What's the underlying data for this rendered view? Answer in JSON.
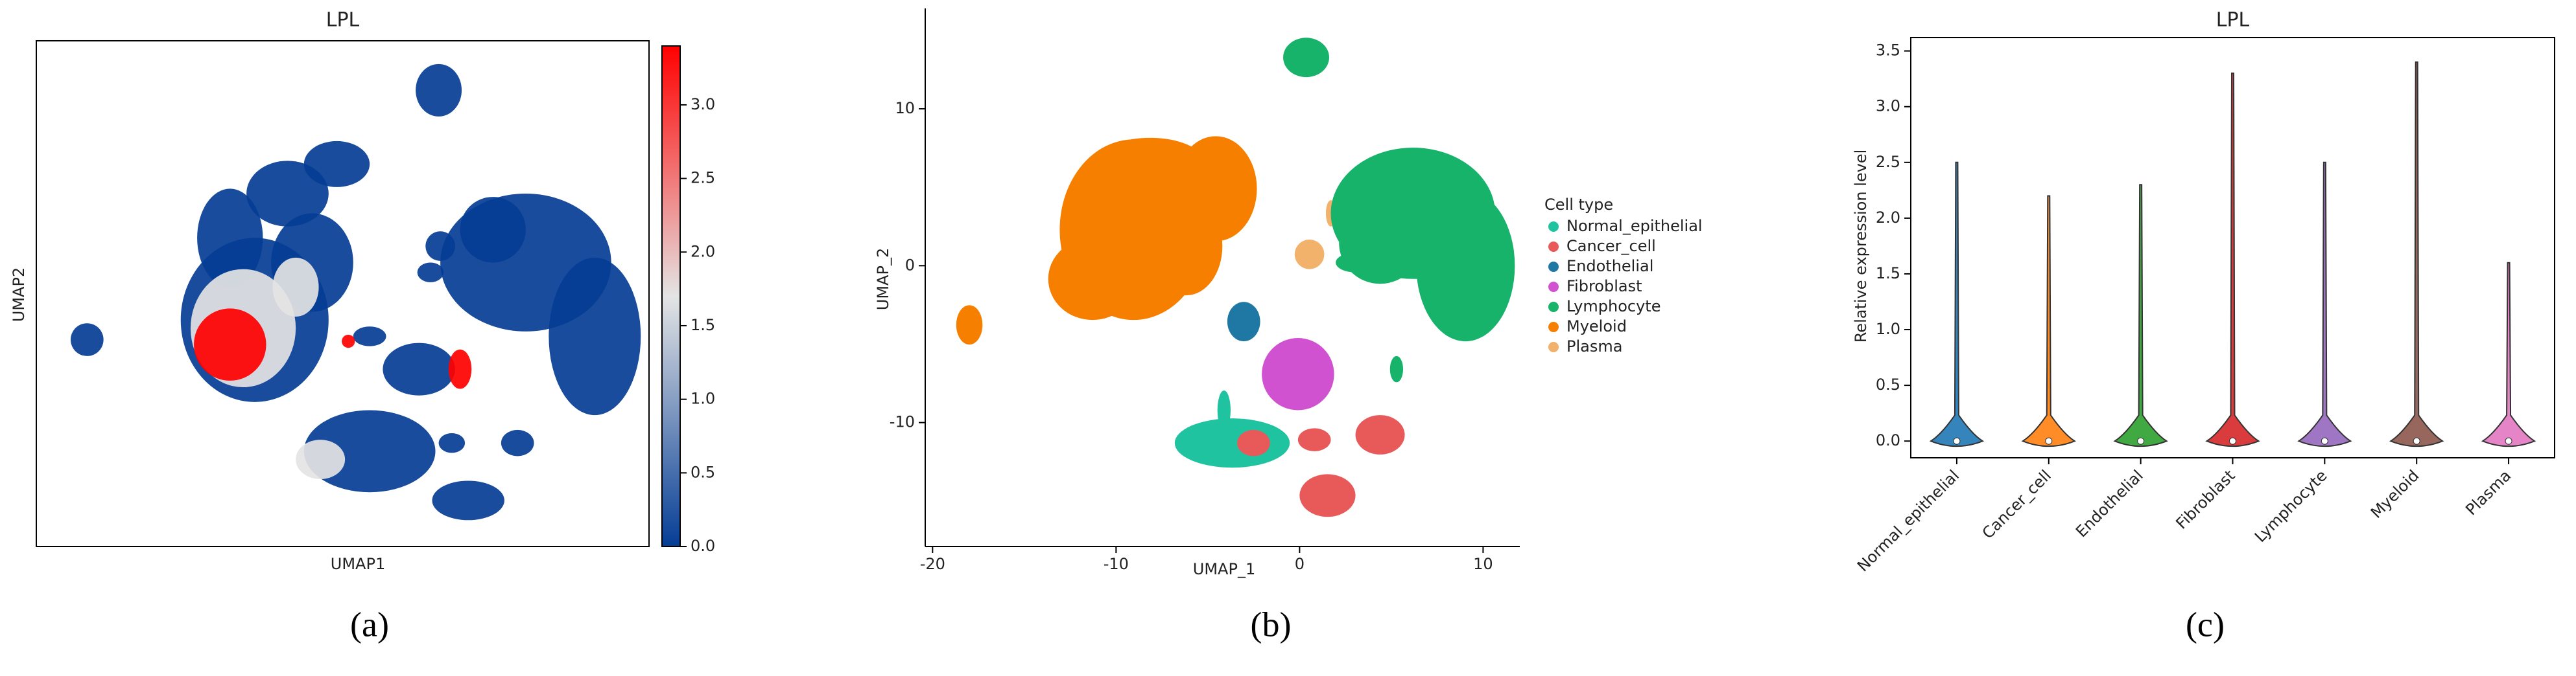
{
  "captions": [
    "(a)",
    "(b)",
    "(c)"
  ],
  "chart_data": [
    {
      "type": "umap-feature",
      "title": "LPL",
      "xlabel": "UMAP1",
      "ylabel": "UMAP2",
      "colorbar": {
        "lim": [
          0,
          3.4
        ],
        "ticks": [
          {
            "value": 0,
            "label": "0.0"
          },
          0.5,
          {
            "value": 1,
            "label": "1.0"
          },
          1.5,
          {
            "value": 2,
            "label": "2.0"
          },
          2.5,
          {
            "value": 3,
            "label": "3.0"
          }
        ],
        "colors": [
          "#053d95",
          "#e4e4e4",
          "#ff0000"
        ]
      }
    },
    {
      "type": "umap",
      "xlabel": "UMAP_1",
      "ylabel": "UMAP_2",
      "xlim": [
        -20.4,
        12
      ],
      "xticks": [
        -20,
        -10,
        0,
        10
      ],
      "ylim": [
        -17.9,
        16.4
      ],
      "yticks": [
        -10,
        0,
        10
      ],
      "legend_title": "Cell type",
      "series": [
        {
          "name": "Normal_epithelial",
          "color": "#1fc3a0"
        },
        {
          "name": "Cancer_cell",
          "color": "#e85a5a"
        },
        {
          "name": "Endothelial",
          "color": "#1f77a4"
        },
        {
          "name": "Fibroblast",
          "color": "#d152d1"
        },
        {
          "name": "Lymphocyte",
          "color": "#17b36b"
        },
        {
          "name": "Myeloid",
          "color": "#f77f00"
        },
        {
          "name": "Plasma",
          "color": "#f2b26b"
        }
      ]
    },
    {
      "type": "violin",
      "title": "LPL",
      "ylabel": "Relative expression level",
      "categories": [
        "Normal_epithelial",
        "Cancer_cell",
        "Endothelial",
        "Fibroblast",
        "Lymphocyte",
        "Myeloid",
        "Plasma"
      ],
      "max": [
        2.5,
        2.2,
        2.3,
        3.3,
        2.5,
        3.4,
        1.6
      ],
      "median": [
        0,
        0,
        0,
        0,
        0,
        0,
        0
      ],
      "colors": [
        "#1f77b4",
        "#ff7f0e",
        "#2ca02c",
        "#d62728",
        "#9467bd",
        "#8c564b",
        "#e377c2"
      ],
      "ylim": [
        -0.15,
        3.62
      ],
      "yticks": [
        {
          "value": 0,
          "label": "0.0"
        },
        0.5,
        {
          "value": 1,
          "label": "1.0"
        },
        1.5,
        {
          "value": 2,
          "label": "2.0"
        },
        2.5,
        {
          "value": 3,
          "label": "3.0"
        },
        3.5
      ]
    }
  ]
}
